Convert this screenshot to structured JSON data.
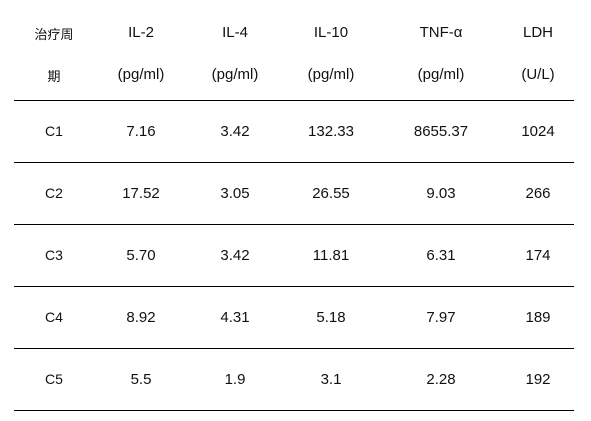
{
  "table": {
    "header_top": [
      "治疗周",
      "IL-2",
      "IL-4",
      "IL-10",
      "TNF-α",
      "LDH"
    ],
    "header_bottom": [
      "期",
      "(pg/ml)",
      "(pg/ml)",
      "(pg/ml)",
      "(pg/ml)",
      "(U/L)"
    ],
    "rows": [
      [
        "C1",
        "7.16",
        "3.42",
        "132.33",
        "8655.37",
        "1024"
      ],
      [
        "C2",
        "17.52",
        "3.05",
        "26.55",
        "9.03",
        "266"
      ],
      [
        "C3",
        "5.70",
        "3.42",
        "11.81",
        "6.31",
        "174"
      ],
      [
        "C4",
        "8.92",
        "4.31",
        "5.18",
        "7.97",
        "189"
      ],
      [
        "C5",
        "5.5",
        "1.9",
        "3.1",
        "2.28",
        "192"
      ]
    ]
  }
}
